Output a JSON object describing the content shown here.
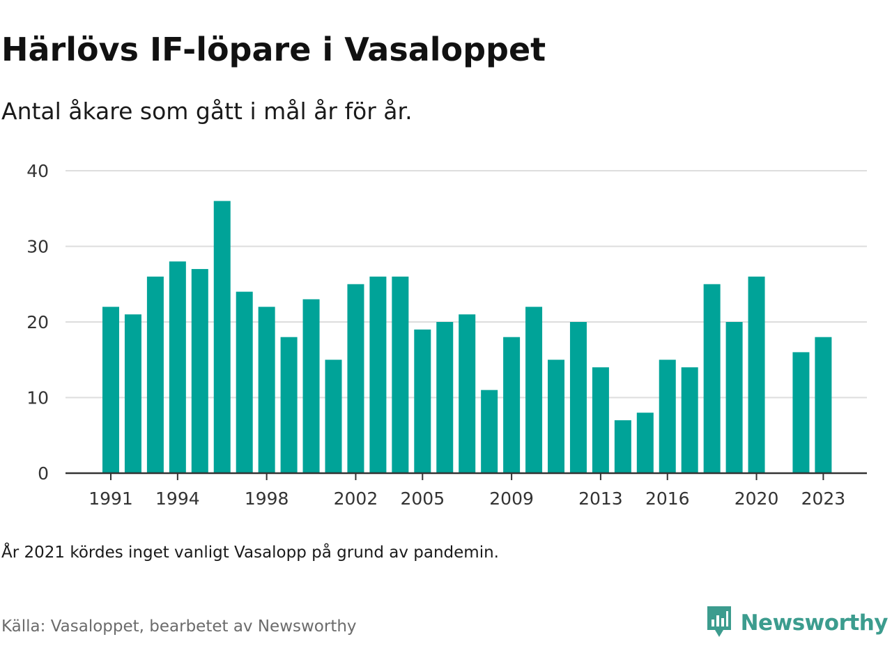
{
  "header": {
    "title": "Härlövs IF-löpare i Vasaloppet",
    "subtitle": "Antal åkare som gått i mål år för år."
  },
  "footer": {
    "note": "År 2021 kördes inget vanligt Vasalopp på grund av pandemin.",
    "source": "Källa: Vasaloppet, bearbetet av Newsworthy",
    "brand": "Newsworthy"
  },
  "colors": {
    "bar": "#00a398",
    "grid": "#dddddd",
    "axis": "#333333",
    "brand": "#3c9c8e"
  },
  "icons": {
    "brand_logo": "newsworthy-logo-icon"
  },
  "chart_data": {
    "type": "bar",
    "title": "Härlövs IF-löpare i Vasaloppet",
    "subtitle": "Antal åkare som gått i mål år för år.",
    "xlabel": "",
    "ylabel": "",
    "ylim": [
      0,
      40
    ],
    "yticks": [
      0,
      10,
      20,
      30,
      40
    ],
    "xtick_labels": [
      "1991",
      "1994",
      "1998",
      "2002",
      "2005",
      "2009",
      "2013",
      "2016",
      "2020",
      "2023"
    ],
    "grid": true,
    "categories": [
      1991,
      1992,
      1993,
      1994,
      1995,
      1996,
      1997,
      1998,
      1999,
      2000,
      2001,
      2002,
      2003,
      2004,
      2005,
      2006,
      2007,
      2008,
      2009,
      2010,
      2011,
      2012,
      2013,
      2014,
      2015,
      2016,
      2017,
      2018,
      2019,
      2020,
      2021,
      2022,
      2023
    ],
    "values": [
      22,
      21,
      26,
      28,
      27,
      36,
      24,
      22,
      18,
      23,
      15,
      25,
      26,
      26,
      19,
      20,
      21,
      11,
      18,
      22,
      15,
      20,
      14,
      7,
      8,
      15,
      14,
      25,
      20,
      26,
      null,
      16,
      18
    ]
  }
}
